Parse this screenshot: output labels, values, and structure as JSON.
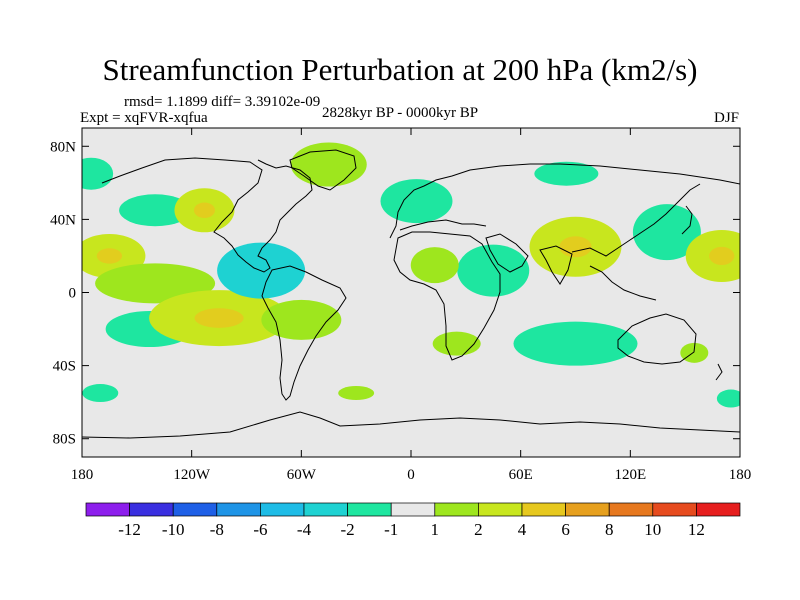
{
  "title": "Streamfunction Perturbation at 200 hPa (km2/s)",
  "stats": "rmsd= 1.1899 diff= 3.39102e-09",
  "experiment": "Expt = xqFVR-xqfua",
  "period": "2828kyr BP - 0000kyr BP",
  "season": "DJF",
  "map": {
    "lon_range": [
      -180,
      180
    ],
    "lat_range": [
      -90,
      90
    ],
    "x_tick_labels": [
      "180",
      "120W",
      "60W",
      "0",
      "60E",
      "120E",
      "180"
    ],
    "y_tick_labels": [
      "80N",
      "40N",
      "0",
      "40S",
      "80S"
    ],
    "background_color": "#e8e8e8",
    "anomalies": [
      {
        "lon": -165,
        "lat": 20,
        "level": 4
      },
      {
        "lon": -140,
        "lat": 5,
        "level": 2
      },
      {
        "lon": -143,
        "lat": -20,
        "level": -2
      },
      {
        "lon": -105,
        "lat": -14,
        "level": 4
      },
      {
        "lon": -82,
        "lat": 12,
        "level": -4
      },
      {
        "lon": -60,
        "lat": -15,
        "level": 2
      },
      {
        "lon": -140,
        "lat": 45,
        "level": -2
      },
      {
        "lon": -113,
        "lat": 45,
        "level": 4
      },
      {
        "lon": -45,
        "lat": 70,
        "level": 2
      },
      {
        "lon": 3,
        "lat": 50,
        "level": -2
      },
      {
        "lon": 45,
        "lat": 12,
        "level": -2
      },
      {
        "lon": 90,
        "lat": 25,
        "level": 4
      },
      {
        "lon": 13,
        "lat": 15,
        "level": 2
      },
      {
        "lon": 85,
        "lat": 65,
        "level": -2
      },
      {
        "lon": 140,
        "lat": 33,
        "level": -2
      },
      {
        "lon": 170,
        "lat": 20,
        "level": 4
      },
      {
        "lon": 90,
        "lat": -28,
        "level": -2
      },
      {
        "lon": 25,
        "lat": -28,
        "level": 2
      },
      {
        "lon": 155,
        "lat": -33,
        "level": 2
      },
      {
        "lon": -30,
        "lat": -55,
        "level": 2
      },
      {
        "lon": -170,
        "lat": -55,
        "level": -2
      },
      {
        "lon": 175,
        "lat": -58,
        "level": -2
      },
      {
        "lon": -175,
        "lat": 65,
        "level": -2
      }
    ]
  },
  "colorbar": {
    "labels": [
      "-12",
      "-10",
      "-8",
      "-6",
      "-4",
      "-2",
      "-1",
      "1",
      "2",
      "4",
      "6",
      "8",
      "10",
      "12"
    ],
    "colors": [
      "#8d1eec",
      "#3a2fe0",
      "#1e5fe6",
      "#1e94e6",
      "#1ebce6",
      "#1ed2d2",
      "#1ee6a0",
      "#e8e8e8",
      "#9ee61e",
      "#c8e61e",
      "#e6c81e",
      "#e6a01e",
      "#e6781e",
      "#e64b1e",
      "#e61e1e"
    ]
  }
}
